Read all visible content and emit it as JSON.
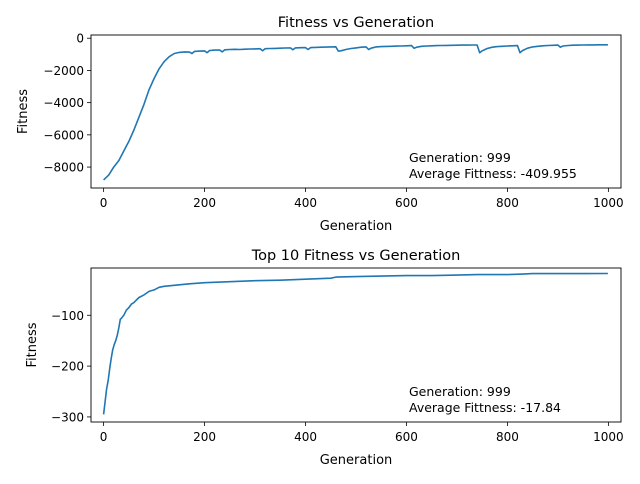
{
  "chart_data": [
    {
      "type": "line",
      "title": "Fitness vs Generation",
      "xlabel": "Generation",
      "ylabel": "Fitness",
      "xlim": [
        -25,
        1025
      ],
      "ylim": [
        -9300,
        200
      ],
      "xticks": [
        0,
        200,
        400,
        600,
        800,
        1000
      ],
      "yticks": [
        0,
        -2000,
        -4000,
        -6000,
        -8000
      ],
      "ytick_labels": [
        "0",
        "−2000",
        "−4000",
        "−6000",
        "−8000"
      ],
      "annotation": [
        "Generation: 999",
        "Average Fittness: -409.955"
      ],
      "series": [
        {
          "color": "#1f77b4",
          "x": [
            0,
            10,
            20,
            30,
            40,
            50,
            60,
            70,
            80,
            90,
            100,
            110,
            120,
            130,
            140,
            150,
            160,
            170,
            175,
            180,
            190,
            200,
            205,
            210,
            220,
            230,
            235,
            240,
            250,
            260,
            270,
            280,
            290,
            300,
            310,
            315,
            320,
            330,
            340,
            350,
            360,
            370,
            375,
            380,
            390,
            400,
            405,
            410,
            420,
            430,
            440,
            450,
            460,
            465,
            470,
            480,
            490,
            500,
            510,
            520,
            525,
            530,
            540,
            550,
            560,
            570,
            580,
            590,
            600,
            610,
            615,
            620,
            630,
            640,
            650,
            660,
            670,
            680,
            690,
            700,
            710,
            720,
            730,
            740,
            745,
            750,
            760,
            770,
            780,
            790,
            800,
            810,
            820,
            825,
            830,
            840,
            850,
            860,
            870,
            880,
            890,
            900,
            905,
            910,
            920,
            930,
            940,
            950,
            960,
            970,
            980,
            990,
            999
          ],
          "y": [
            -8800,
            -8500,
            -8000,
            -7600,
            -7000,
            -6400,
            -5700,
            -4900,
            -4100,
            -3200,
            -2500,
            -1900,
            -1450,
            -1150,
            -950,
            -880,
            -850,
            -860,
            -950,
            -820,
            -800,
            -790,
            -900,
            -760,
            -740,
            -730,
            -850,
            -720,
            -700,
            -690,
            -700,
            -680,
            -670,
            -660,
            -650,
            -780,
            -650,
            -640,
            -630,
            -620,
            -610,
            -600,
            -720,
            -600,
            -590,
            -580,
            -700,
            -580,
            -570,
            -560,
            -550,
            -540,
            -530,
            -800,
            -780,
            -700,
            -640,
            -600,
            -560,
            -540,
            -700,
            -620,
            -540,
            -520,
            -510,
            -500,
            -490,
            -480,
            -470,
            -460,
            -620,
            -560,
            -500,
            -480,
            -470,
            -460,
            -450,
            -445,
            -440,
            -435,
            -430,
            -425,
            -420,
            -420,
            -900,
            -780,
            -640,
            -560,
            -520,
            -500,
            -480,
            -470,
            -460,
            -900,
            -760,
            -620,
            -540,
            -500,
            -470,
            -450,
            -440,
            -430,
            -560,
            -480,
            -450,
            -435,
            -425,
            -420,
            -415,
            -412,
            -410,
            -410,
            -410
          ]
        }
      ]
    },
    {
      "type": "line",
      "title": "Top 10 Fitness vs Generation",
      "xlabel": "Generation",
      "ylabel": "Fitness",
      "xlim": [
        -25,
        1025
      ],
      "ylim": [
        -310,
        -7
      ],
      "xticks": [
        0,
        200,
        400,
        600,
        800,
        1000
      ],
      "yticks": [
        -100,
        -200,
        -300
      ],
      "ytick_labels": [
        "−100",
        "−200",
        "−300"
      ],
      "annotation": [
        "Generation: 999",
        "Average Fittness: -17.84"
      ],
      "series": [
        {
          "color": "#1f77b4",
          "x": [
            0,
            3,
            6,
            9,
            12,
            15,
            18,
            21,
            24,
            27,
            30,
            33,
            36,
            40,
            45,
            50,
            55,
            60,
            65,
            70,
            80,
            90,
            100,
            110,
            120,
            130,
            140,
            150,
            170,
            200,
            250,
            300,
            350,
            400,
            450,
            460,
            500,
            550,
            600,
            650,
            700,
            740,
            750,
            800,
            830,
            850,
            900,
            950,
            999
          ],
          "y": [
            -295,
            -270,
            -245,
            -228,
            -205,
            -185,
            -168,
            -158,
            -150,
            -140,
            -125,
            -108,
            -105,
            -100,
            -90,
            -85,
            -78,
            -75,
            -70,
            -65,
            -60,
            -53,
            -50,
            -45,
            -43,
            -42,
            -41,
            -40,
            -38,
            -36,
            -34,
            -32,
            -31,
            -29,
            -27,
            -25,
            -24,
            -23,
            -22,
            -22,
            -21,
            -20,
            -20,
            -20,
            -19,
            -18,
            -18,
            -18,
            -17.84
          ]
        }
      ]
    }
  ]
}
